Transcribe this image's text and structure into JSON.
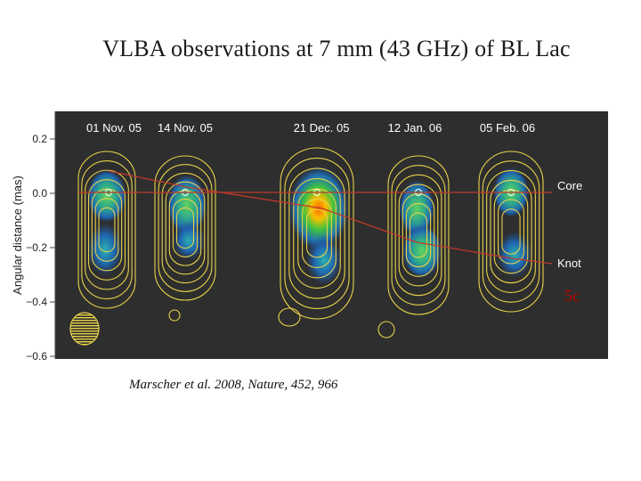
{
  "slide": {
    "title": "VLBA observations at 7 mm (43 GHz) of BL Lac",
    "citation": "Marscher et al. 2008, Nature, 452, 966",
    "annotation": "5c"
  },
  "figure": {
    "ylabel": "Angular distance (mas)",
    "ylim": [
      -0.62,
      0.29
    ],
    "ticks": [
      {
        "value": 0.2,
        "label": "0.2"
      },
      {
        "value": 0.0,
        "label": "0.0"
      },
      {
        "value": -0.2,
        "label": "−0.2"
      },
      {
        "value": -0.4,
        "label": "−0.4"
      },
      {
        "value": -0.6,
        "label": "−0.6"
      }
    ],
    "epochs": [
      "01 Nov. 05",
      "14 Nov. 05",
      "21 Dec. 05",
      "12 Jan. 06",
      "05 Feb. 06"
    ],
    "line_labels": {
      "core": "Core",
      "knot": "Knot"
    },
    "colors": {
      "panel_bg": "#2e2e2e",
      "contour": "#e8d24a",
      "trace": "#c0392b",
      "annotation": "#c00000"
    }
  }
}
